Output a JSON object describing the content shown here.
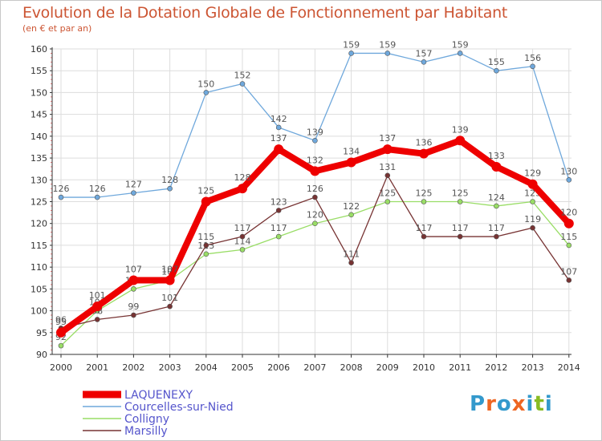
{
  "chart_data": {
    "type": "line",
    "title": "Evolution de la Dotation Globale de Fonctionnement par Habitant",
    "subtitle": "(en € et par an)",
    "xlabel": "",
    "ylabel": "",
    "ylim": [
      90,
      160
    ],
    "yticks": [
      90,
      95,
      100,
      105,
      110,
      115,
      120,
      125,
      130,
      135,
      140,
      145,
      150,
      155,
      160
    ],
    "categories": [
      "2000",
      "2001",
      "2002",
      "2003",
      "2004",
      "2005",
      "2006",
      "2007",
      "2008",
      "2009",
      "2010",
      "2011",
      "2012",
      "2013",
      "2014"
    ],
    "legend_position": "bottom-left",
    "series": [
      {
        "name": "LAQUENEXY",
        "color": "#ee0000",
        "values": [
          95,
          101,
          107,
          107,
          125,
          128,
          137,
          132,
          134,
          137,
          136,
          139,
          133,
          129,
          120
        ]
      },
      {
        "name": "Courcelles-sur-Nied",
        "color": "#6fa8dc",
        "values": [
          126,
          126,
          127,
          128,
          150,
          152,
          142,
          139,
          159,
          159,
          157,
          159,
          155,
          156,
          130
        ]
      },
      {
        "name": "Colligny",
        "color": "#99dd66",
        "values": [
          92,
          100,
          105,
          107,
          113,
          114,
          117,
          120,
          122,
          125,
          125,
          125,
          124,
          125,
          115
        ]
      },
      {
        "name": "Marsilly",
        "color": "#773333",
        "values": [
          96,
          98,
          99,
          101,
          115,
          117,
          123,
          126,
          111,
          131,
          117,
          117,
          117,
          119,
          107
        ]
      }
    ]
  },
  "colors": {
    "title": "#cc5533",
    "axis": "#333333",
    "grid": "#dddddd"
  },
  "logo": {
    "letters": [
      "P",
      "r",
      "o",
      "x",
      "i",
      "t",
      "i"
    ],
    "colors": [
      "#3399cc",
      "#ee6622",
      "#3399cc",
      "#ee6622",
      "#3399cc",
      "#88bb22",
      "#3399cc"
    ]
  }
}
